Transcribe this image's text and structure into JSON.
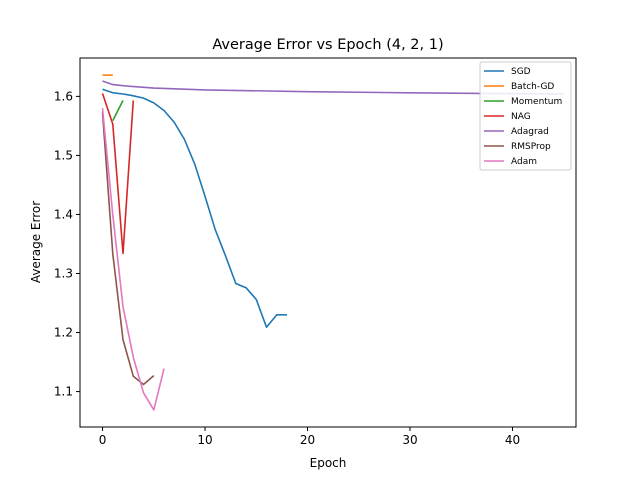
{
  "chart_data": {
    "type": "line",
    "title": "Average Error vs Epoch (4, 2, 1)",
    "xlabel": "Epoch",
    "ylabel": "Average Error",
    "xlim": [
      -2.2,
      46.2
    ],
    "ylim": [
      1.04,
      1.665
    ],
    "xticks": [
      0,
      10,
      20,
      30,
      40
    ],
    "yticks": [
      1.1,
      1.2,
      1.3,
      1.4,
      1.5,
      1.6
    ],
    "grid": false,
    "legend_position": "top-right",
    "series": [
      {
        "name": "SGD",
        "color": "#1f77b4",
        "x": [
          0,
          1,
          2,
          3,
          4,
          5,
          6,
          7,
          8,
          9,
          10,
          11,
          12,
          13,
          14,
          15,
          16,
          17,
          18
        ],
        "y": [
          1.612,
          1.606,
          1.604,
          1.601,
          1.597,
          1.589,
          1.576,
          1.556,
          1.527,
          1.485,
          1.431,
          1.374,
          1.33,
          1.283,
          1.276,
          1.256,
          1.209,
          1.23,
          1.23
        ]
      },
      {
        "name": "Batch-GD",
        "color": "#ff7f0e",
        "x": [
          0,
          1
        ],
        "y": [
          1.636,
          1.636
        ]
      },
      {
        "name": "Momentum",
        "color": "#2ca02c",
        "x": [
          1,
          2
        ],
        "y": [
          1.559,
          1.593
        ]
      },
      {
        "name": "NAG",
        "color": "#d62728",
        "x": [
          0,
          1,
          2,
          3
        ],
        "y": [
          1.605,
          1.553,
          1.334,
          1.593
        ]
      },
      {
        "name": "Adagrad",
        "color": "#9467bd",
        "x": [
          0,
          1,
          2,
          5,
          10,
          20,
          30,
          37,
          45
        ],
        "y": [
          1.626,
          1.62,
          1.618,
          1.614,
          1.611,
          1.608,
          1.606,
          1.605,
          1.604
        ]
      },
      {
        "name": "RMSProp",
        "color": "#8c564b",
        "x": [
          0,
          1,
          2,
          3,
          4,
          5
        ],
        "y": [
          1.573,
          1.333,
          1.188,
          1.126,
          1.112,
          1.127
        ]
      },
      {
        "name": "Adam",
        "color": "#e377c2",
        "x": [
          0,
          1,
          2,
          3,
          4,
          5,
          6
        ],
        "y": [
          1.58,
          1.399,
          1.244,
          1.158,
          1.098,
          1.069,
          1.139
        ]
      }
    ]
  }
}
